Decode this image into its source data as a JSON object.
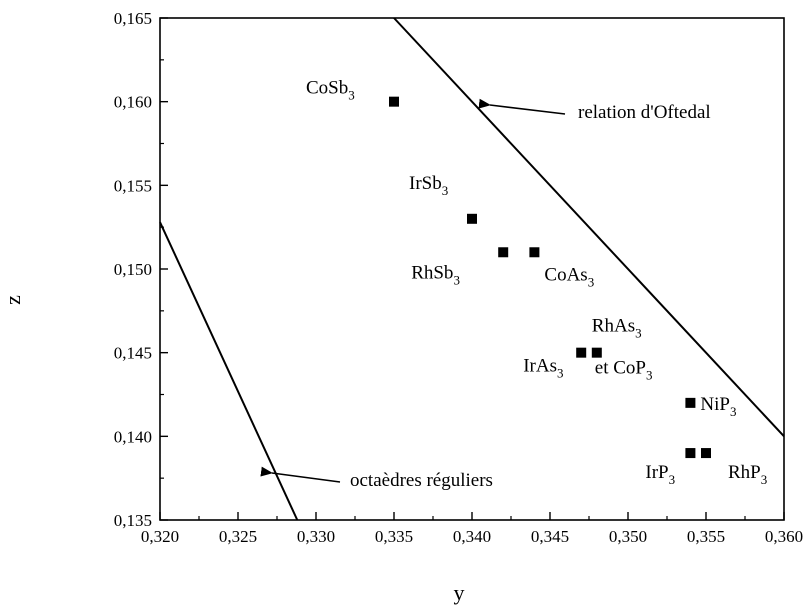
{
  "chart_data": {
    "type": "scatter",
    "title": "",
    "xlabel": "y",
    "ylabel": "z",
    "xlim": [
      0.32,
      0.36
    ],
    "ylim": [
      0.135,
      0.165
    ],
    "grid": false,
    "x_ticks": [
      "0,320",
      "0,325",
      "0,330",
      "0,335",
      "0,340",
      "0,345",
      "0,350",
      "0,355",
      "0,360"
    ],
    "y_ticks": [
      "0,135",
      "0,140",
      "0,145",
      "0,150",
      "0,155",
      "0,160",
      "0,165"
    ],
    "points": [
      {
        "name": "CoSb3",
        "label": "CoSb",
        "sub": "3",
        "x": 0.335,
        "y": 0.16
      },
      {
        "name": "IrSb3",
        "label": "IrSb",
        "sub": "3",
        "x": 0.34,
        "y": 0.153
      },
      {
        "name": "RhSb3",
        "label": "RhSb",
        "sub": "3",
        "x": 0.342,
        "y": 0.151
      },
      {
        "name": "CoAs3",
        "label": "CoAs",
        "sub": "3",
        "x": 0.344,
        "y": 0.151
      },
      {
        "name": "IrAs3",
        "label": "IrAs",
        "sub": "3",
        "x": 0.347,
        "y": 0.145
      },
      {
        "name": "RhAs3-CoP3",
        "label": "RhAs",
        "sub": "3",
        "label2": "et CoP",
        "sub2": "3",
        "x": 0.348,
        "y": 0.145
      },
      {
        "name": "NiP3",
        "label": "NiP",
        "sub": "3",
        "x": 0.354,
        "y": 0.142
      },
      {
        "name": "IrP3",
        "label": "IrP",
        "sub": "3",
        "x": 0.354,
        "y": 0.139
      },
      {
        "name": "RhP3",
        "label": "RhP",
        "sub": "3",
        "x": 0.355,
        "y": 0.139
      }
    ],
    "lines": [
      {
        "name": "relation d'Oftedal",
        "x": [
          0.335,
          0.36
        ],
        "y": [
          0.165,
          0.14
        ]
      },
      {
        "name": "octaèdres réguliers",
        "x": [
          0.32,
          0.3288
        ],
        "y": [
          0.1528,
          0.135
        ]
      }
    ],
    "annotations": [
      {
        "text": "relation d'Oftedal"
      },
      {
        "text": "octaèdres réguliers"
      }
    ]
  }
}
